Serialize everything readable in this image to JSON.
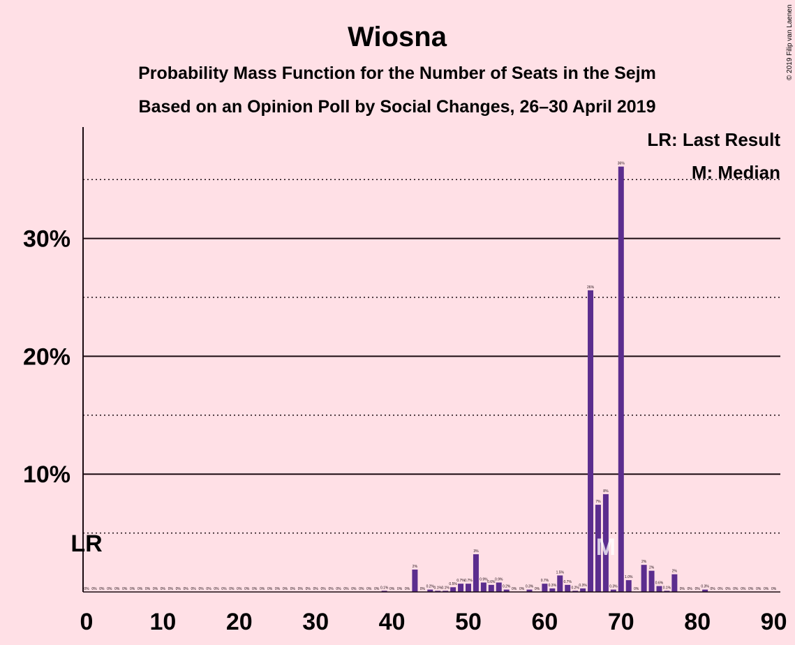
{
  "chart_data": {
    "type": "bar",
    "title": "Wiosna",
    "subtitle_1": "Probability Mass Function for the Number of Seats in the Sejm",
    "subtitle_2": "Based on an Opinion Poll by Social Changes, 26–30 April 2019",
    "copyright": "© 2019 Filip van Laenen",
    "legend": {
      "lr": "LR: Last Result",
      "m": "M: Median",
      "placement": "top-right"
    },
    "last_result": {
      "seats": 0,
      "label": "LR"
    },
    "median": {
      "seats": 68,
      "label": "M"
    },
    "xlim": [
      0,
      90
    ],
    "ylim": [
      0,
      0.39
    ],
    "x_ticks": [
      0,
      10,
      20,
      30,
      40,
      50,
      60,
      70,
      80,
      90
    ],
    "y_ticks": [
      {
        "value": 0.1,
        "label": "10%"
      },
      {
        "value": 0.2,
        "label": "20%"
      },
      {
        "value": 0.3,
        "label": "30%"
      }
    ],
    "y_minor_gridlines": [
      0.05,
      0.15,
      0.25,
      0.35
    ],
    "bar_color": "#5b2d8e",
    "bars": [
      {
        "x": 0,
        "value": 0,
        "label": "0%"
      },
      {
        "x": 1,
        "value": 0,
        "label": "0%"
      },
      {
        "x": 2,
        "value": 0,
        "label": "0%"
      },
      {
        "x": 3,
        "value": 0,
        "label": "0%"
      },
      {
        "x": 4,
        "value": 0,
        "label": "0%"
      },
      {
        "x": 5,
        "value": 0,
        "label": "0%"
      },
      {
        "x": 6,
        "value": 0,
        "label": "0%"
      },
      {
        "x": 7,
        "value": 0,
        "label": "0%"
      },
      {
        "x": 8,
        "value": 0,
        "label": "0%"
      },
      {
        "x": 9,
        "value": 0,
        "label": "0%"
      },
      {
        "x": 10,
        "value": 0,
        "label": "0%"
      },
      {
        "x": 11,
        "value": 0,
        "label": "0%"
      },
      {
        "x": 12,
        "value": 0,
        "label": "0%"
      },
      {
        "x": 13,
        "value": 0,
        "label": "0%"
      },
      {
        "x": 14,
        "value": 0,
        "label": "0%"
      },
      {
        "x": 15,
        "value": 0,
        "label": "0%"
      },
      {
        "x": 16,
        "value": 0,
        "label": "0%"
      },
      {
        "x": 17,
        "value": 0,
        "label": "0%"
      },
      {
        "x": 18,
        "value": 0,
        "label": "0%"
      },
      {
        "x": 19,
        "value": 0,
        "label": "0%"
      },
      {
        "x": 20,
        "value": 0,
        "label": "0%"
      },
      {
        "x": 21,
        "value": 0,
        "label": "0%"
      },
      {
        "x": 22,
        "value": 0,
        "label": "0%"
      },
      {
        "x": 23,
        "value": 0,
        "label": "0%"
      },
      {
        "x": 24,
        "value": 0,
        "label": "0%"
      },
      {
        "x": 25,
        "value": 0,
        "label": "0%"
      },
      {
        "x": 26,
        "value": 0,
        "label": "0%"
      },
      {
        "x": 27,
        "value": 0,
        "label": "0%"
      },
      {
        "x": 28,
        "value": 0,
        "label": "0%"
      },
      {
        "x": 29,
        "value": 0,
        "label": "0%"
      },
      {
        "x": 30,
        "value": 0,
        "label": "0%"
      },
      {
        "x": 31,
        "value": 0,
        "label": "0%"
      },
      {
        "x": 32,
        "value": 0,
        "label": "0%"
      },
      {
        "x": 33,
        "value": 0,
        "label": "0%"
      },
      {
        "x": 34,
        "value": 0,
        "label": "0%"
      },
      {
        "x": 35,
        "value": 0,
        "label": "0%"
      },
      {
        "x": 36,
        "value": 0,
        "label": "0%"
      },
      {
        "x": 37,
        "value": 0,
        "label": "0%"
      },
      {
        "x": 38,
        "value": 0,
        "label": "0%"
      },
      {
        "x": 39,
        "value": 0.001,
        "label": "0.1%"
      },
      {
        "x": 40,
        "value": 0,
        "label": "0%"
      },
      {
        "x": 41,
        "value": 0,
        "label": "0%"
      },
      {
        "x": 42,
        "value": 0,
        "label": "0%"
      },
      {
        "x": 43,
        "value": 0.019,
        "label": "2%"
      },
      {
        "x": 44,
        "value": 0,
        "label": "0%"
      },
      {
        "x": 45,
        "value": 0.002,
        "label": "0.2%"
      },
      {
        "x": 46,
        "value": 0.001,
        "label": "0.1%"
      },
      {
        "x": 47,
        "value": 0.001,
        "label": "0.1%"
      },
      {
        "x": 48,
        "value": 0.004,
        "label": "0.5%"
      },
      {
        "x": 49,
        "value": 0.007,
        "label": "0.7%"
      },
      {
        "x": 50,
        "value": 0.007,
        "label": "0.7%"
      },
      {
        "x": 51,
        "value": 0.032,
        "label": "3%"
      },
      {
        "x": 52,
        "value": 0.008,
        "label": "0.9%"
      },
      {
        "x": 53,
        "value": 0.006,
        "label": "0.6%"
      },
      {
        "x": 54,
        "value": 0.008,
        "label": "0.9%"
      },
      {
        "x": 55,
        "value": 0.002,
        "label": "0.2%"
      },
      {
        "x": 56,
        "value": 0,
        "label": "0%"
      },
      {
        "x": 57,
        "value": 0,
        "label": "0%"
      },
      {
        "x": 58,
        "value": 0.002,
        "label": "0.3%"
      },
      {
        "x": 59,
        "value": 0,
        "label": "0%"
      },
      {
        "x": 60,
        "value": 0.007,
        "label": "0.7%"
      },
      {
        "x": 61,
        "value": 0.003,
        "label": "0.3%"
      },
      {
        "x": 62,
        "value": 0.014,
        "label": "1.5%"
      },
      {
        "x": 63,
        "value": 0.006,
        "label": "0.7%"
      },
      {
        "x": 64,
        "value": 0.001,
        "label": "0.2%"
      },
      {
        "x": 65,
        "value": 0.003,
        "label": "0.3%"
      },
      {
        "x": 66,
        "value": 0.256,
        "label": "26%"
      },
      {
        "x": 67,
        "value": 0.074,
        "label": "7%"
      },
      {
        "x": 68,
        "value": 0.083,
        "label": "8%"
      },
      {
        "x": 69,
        "value": 0.002,
        "label": "0.3%"
      },
      {
        "x": 70,
        "value": 0.361,
        "label": "36%"
      },
      {
        "x": 71,
        "value": 0.01,
        "label": "1.0%"
      },
      {
        "x": 72,
        "value": 0,
        "label": "0%"
      },
      {
        "x": 73,
        "value": 0.023,
        "label": "2%"
      },
      {
        "x": 74,
        "value": 0.018,
        "label": "2%"
      },
      {
        "x": 75,
        "value": 0.005,
        "label": "0.6%"
      },
      {
        "x": 76,
        "value": 0.001,
        "label": "0.1%"
      },
      {
        "x": 77,
        "value": 0.015,
        "label": "2%"
      },
      {
        "x": 78,
        "value": 0,
        "label": "0%"
      },
      {
        "x": 79,
        "value": 0,
        "label": "0%"
      },
      {
        "x": 80,
        "value": 0,
        "label": "0%"
      },
      {
        "x": 81,
        "value": 0.002,
        "label": "0.3%"
      },
      {
        "x": 82,
        "value": 0,
        "label": "0%"
      },
      {
        "x": 83,
        "value": 0,
        "label": "0%"
      },
      {
        "x": 84,
        "value": 0,
        "label": "0%"
      },
      {
        "x": 85,
        "value": 0,
        "label": "0%"
      },
      {
        "x": 86,
        "value": 0,
        "label": "0%"
      },
      {
        "x": 87,
        "value": 0,
        "label": "0%"
      },
      {
        "x": 88,
        "value": 0,
        "label": "0%"
      },
      {
        "x": 89,
        "value": 0,
        "label": "0%"
      },
      {
        "x": 90,
        "value": 0,
        "label": "0%"
      }
    ]
  }
}
